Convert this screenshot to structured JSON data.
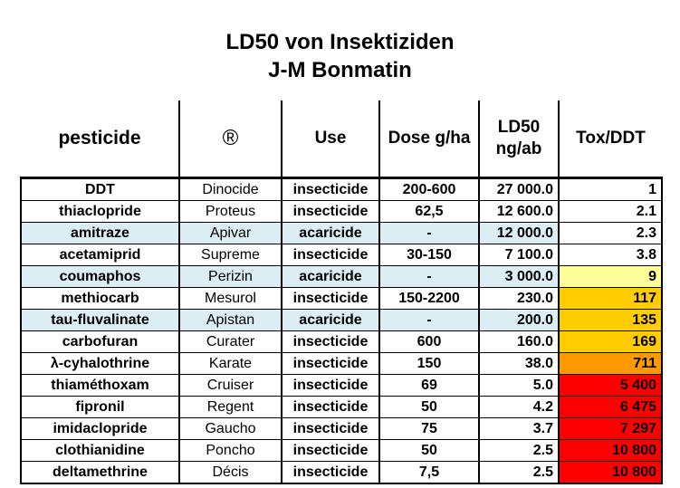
{
  "title_line1": "LD50 von Insektiziden",
  "title_line2": "J-M Bonmatin",
  "colors": {
    "row_shade": "#dbeef3",
    "tox_yellow": "#ffff99",
    "tox_amber": "#ffcc00",
    "tox_orange": "#ff9900",
    "tox_red": "#ff0000"
  },
  "headers": {
    "pesticide": "pesticide",
    "registered": "®",
    "use": "Use",
    "dose": "Dose g/ha",
    "ld50_line1": "LD50",
    "ld50_line2": "ng/ab",
    "tox": "Tox/DDT"
  },
  "rows": [
    {
      "pesticide": "DDT",
      "brand": "Dinocide",
      "use": "insecticide",
      "dose": "200-600",
      "ld50": "27 000.0",
      "tox": "1",
      "shade": false,
      "tox_color": "#ffffff"
    },
    {
      "pesticide": "thiaclopride",
      "brand": "Proteus",
      "use": "insecticide",
      "dose": "62,5",
      "ld50": "12 600.0",
      "tox": "2.1",
      "shade": false,
      "tox_color": "#ffffff"
    },
    {
      "pesticide": "amitraze",
      "brand": "Apivar",
      "use": "acaricide",
      "dose": "-",
      "ld50": "12 000.0",
      "tox": "2.3",
      "shade": true,
      "tox_color": "#ffffff"
    },
    {
      "pesticide": "acetamiprid",
      "brand": "Supreme",
      "use": "insecticide",
      "dose": "30-150",
      "ld50": "7 100.0",
      "tox": "3.8",
      "shade": false,
      "tox_color": "#ffffff"
    },
    {
      "pesticide": "coumaphos",
      "brand": "Perizin",
      "use": "acaricide",
      "dose": "-",
      "ld50": "3 000.0",
      "tox": "9",
      "shade": true,
      "tox_color": "#ffff99"
    },
    {
      "pesticide": "methiocarb",
      "brand": "Mesurol",
      "use": "insecticide",
      "dose": "150-2200",
      "ld50": "230.0",
      "tox": "117",
      "shade": false,
      "tox_color": "#ffcc00"
    },
    {
      "pesticide": "tau-fluvalinate",
      "brand": "Apistan",
      "use": "acaricide",
      "dose": "-",
      "ld50": "200.0",
      "tox": "135",
      "shade": true,
      "tox_color": "#ffcc00"
    },
    {
      "pesticide": "carbofuran",
      "brand": "Curater",
      "use": "insecticide",
      "dose": "600",
      "ld50": "160.0",
      "tox": "169",
      "shade": false,
      "tox_color": "#ffcc00"
    },
    {
      "pesticide": "λ-cyhalothrine",
      "brand": "Karate",
      "use": "insecticide",
      "dose": "150",
      "ld50": "38.0",
      "tox": "711",
      "shade": false,
      "tox_color": "#ff9900"
    },
    {
      "pesticide": "thiaméthoxam",
      "brand": "Cruiser",
      "use": "insecticide",
      "dose": "69",
      "ld50": "5.0",
      "tox": "5 400",
      "shade": false,
      "tox_color": "#ff0000"
    },
    {
      "pesticide": "fipronil",
      "brand": "Regent",
      "use": "insecticide",
      "dose": "50",
      "ld50": "4.2",
      "tox": "6 475",
      "shade": false,
      "tox_color": "#ff0000"
    },
    {
      "pesticide": "imidaclopride",
      "brand": "Gaucho",
      "use": "insecticide",
      "dose": "75",
      "ld50": "3.7",
      "tox": "7 297",
      "shade": false,
      "tox_color": "#ff0000"
    },
    {
      "pesticide": "clothianidine",
      "brand": "Poncho",
      "use": "insecticide",
      "dose": "50",
      "ld50": "2.5",
      "tox": "10 800",
      "shade": false,
      "tox_color": "#ff0000"
    },
    {
      "pesticide": "deltamethrine",
      "brand": "Décis",
      "use": "insecticide",
      "dose": "7,5",
      "ld50": "2.5",
      "tox": "10 800",
      "shade": false,
      "tox_color": "#ff0000"
    }
  ]
}
